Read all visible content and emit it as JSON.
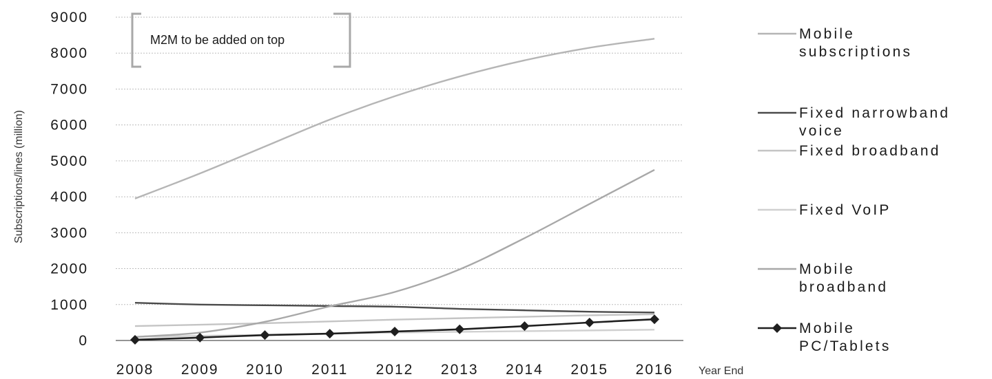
{
  "chart_data": {
    "type": "line",
    "title": "",
    "xlabel": "Year End",
    "ylabel": "Subscriptions/lines (million)",
    "ylim": [
      0,
      9000
    ],
    "yticks": [
      0,
      1000,
      2000,
      3000,
      4000,
      5000,
      6000,
      7000,
      8000,
      9000
    ],
    "x": [
      "2008",
      "2009",
      "2010",
      "2011",
      "2012",
      "2013",
      "2014",
      "2015",
      "2016"
    ],
    "grid": true,
    "legend_position": "right",
    "annotation": "M2M to be added on top",
    "series": [
      {
        "name": "Mobile subscriptions",
        "legend_lines": [
          "Mobile",
          "subscriptions"
        ],
        "color": "#b5b5b5",
        "marker": "none",
        "values": [
          3950,
          4650,
          5400,
          6150,
          6800,
          7350,
          7800,
          8150,
          8400
        ]
      },
      {
        "name": "Fixed narrowband voice",
        "legend_lines": [
          "Fixed narrowband",
          "voice"
        ],
        "color": "#4a4a4a",
        "marker": "none",
        "values": [
          1050,
          1000,
          980,
          960,
          940,
          880,
          840,
          800,
          780
        ]
      },
      {
        "name": "Fixed broadband",
        "legend_lines": [
          "Fixed broadband"
        ],
        "color": "#c4c4c4",
        "marker": "none",
        "values": [
          400,
          440,
          480,
          530,
          580,
          620,
          660,
          700,
          730
        ]
      },
      {
        "name": "Fixed VoIP",
        "legend_lines": [
          "Fixed VoIP"
        ],
        "color": "#d0d0d0",
        "marker": "none",
        "values": [
          100,
          130,
          160,
          190,
          220,
          240,
          260,
          280,
          300
        ]
      },
      {
        "name": "Mobile broadband",
        "legend_lines": [
          "Mobile",
          "broadband"
        ],
        "color": "#a8a8a8",
        "marker": "none",
        "values": [
          100,
          220,
          520,
          950,
          1350,
          1980,
          2850,
          3800,
          4750
        ]
      },
      {
        "name": "Mobile PC/Tablets",
        "legend_lines": [
          "Mobile",
          "PC/Tablets"
        ],
        "color": "#1f1f1f",
        "marker": "diamond",
        "values": [
          20,
          80,
          150,
          190,
          250,
          310,
          400,
          500,
          590
        ]
      }
    ]
  }
}
